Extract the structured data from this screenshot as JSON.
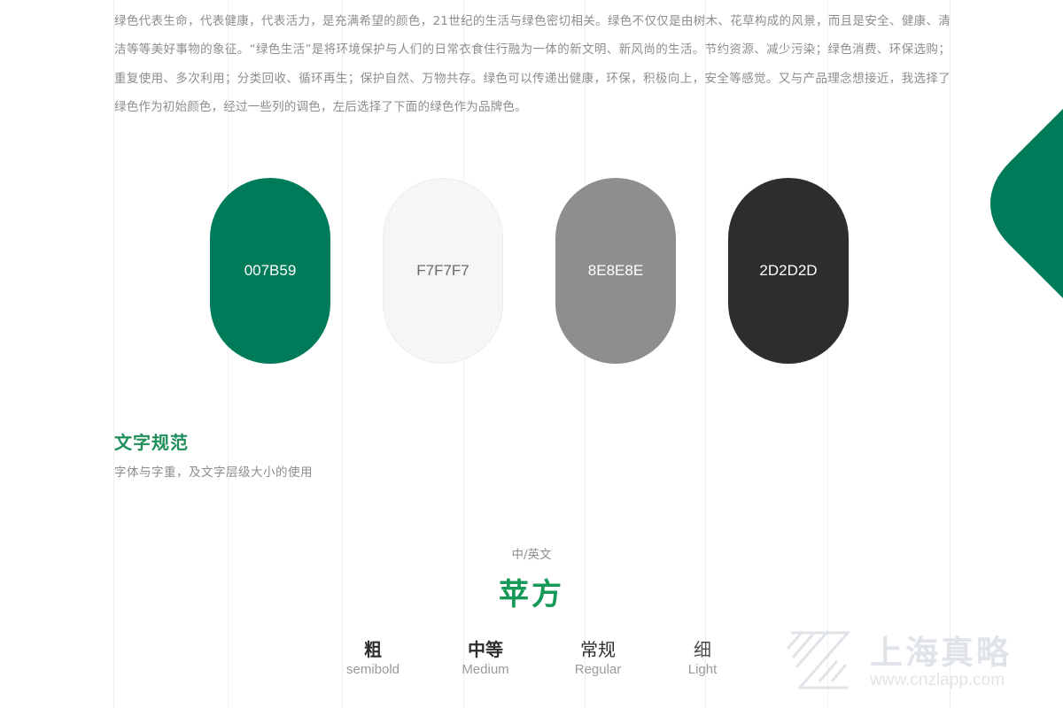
{
  "intro": {
    "text": "绿色代表生命，代表健康，代表活力，是充满希望的颜色，21世纪的生活与绿色密切相关。绿色不仅仅是由树木、花草构成的风景，而且是安全、健康、清洁等等美好事物的象征。“绿色生活”是将环境保护与人们的日常衣食住行融为一体的新文明、新风尚的生活。节约资源、减少污染；绿色消费、环保选购；重复使用、多次利用；分类回收、循环再生；保护自然、万物共存。绿色可以传递出健康，环保，积极向上，安全等感觉。又与产品理念想接近，我选择了绿色作为初始颜色，经过一些列的调色，左后选择了下面的绿色作为品牌色。"
  },
  "palette": [
    {
      "label": "007B59",
      "color": "#007B59",
      "text_color": "#ffffff"
    },
    {
      "label": "F7F7F7",
      "color": "#F7F7F7",
      "text_color": "#6a6a6a"
    },
    {
      "label": "8E8E8E",
      "color": "#8E8E8E",
      "text_color": "#ffffff"
    },
    {
      "label": "2D2D2D",
      "color": "#2D2D2D",
      "text_color": "#ffffff"
    }
  ],
  "colors": {
    "accent": "#007B59",
    "title_green": "#1E8F5A",
    "font_name_green": "#159957",
    "body_text": "#8d8d8d"
  },
  "typography": {
    "title": "文字规范",
    "subtitle": "字体与字重，及文字层级大小的使用",
    "lang_label": "中/英文",
    "font_name": "苹方",
    "weights": [
      {
        "zh": "粗",
        "en": "semibold"
      },
      {
        "zh": "中等",
        "en": "Medium"
      },
      {
        "zh": "常规",
        "en": "Regular"
      },
      {
        "zh": "细",
        "en": "Light"
      }
    ]
  },
  "watermark": {
    "name": "上海真略",
    "url": "www.cnzlapp.com",
    "icon": "zl-logo-icon"
  }
}
